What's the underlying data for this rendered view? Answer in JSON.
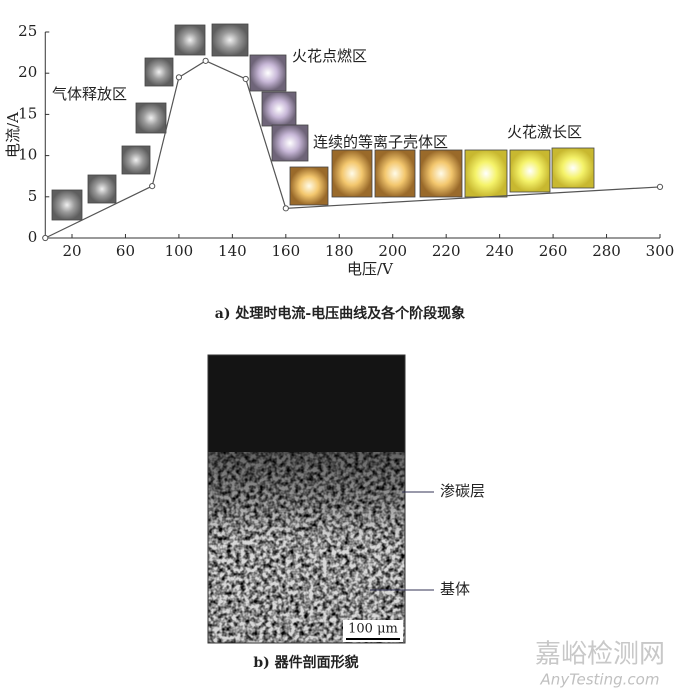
{
  "chart_data": {
    "type": "line",
    "caption": "a) 处理时电流-电压曲线及各个阶段现象",
    "xlabel": "电压/V",
    "ylabel": "电流/A",
    "x": [
      0,
      80,
      100,
      120,
      145,
      160,
      300
    ],
    "values": [
      0,
      6.3,
      19.5,
      21.5,
      19.3,
      3.6,
      6.2
    ],
    "color": "#555555",
    "xlim": [
      0,
      300
    ],
    "ylim": [
      0,
      25
    ],
    "xticks": [
      20,
      60,
      100,
      140,
      160,
      180,
      200,
      220,
      240,
      260,
      280,
      300
    ],
    "yticks": [
      0,
      5,
      10,
      15,
      20,
      25
    ],
    "annotations": [
      "气体释放区",
      "火花点燃区",
      "连续的等离子壳体区",
      "火花激长区"
    ]
  },
  "micrograph": {
    "labels": [
      "渗碳层",
      "基体"
    ],
    "scale_bar": "100 μm",
    "caption": "b) 器件剖面形貌"
  },
  "watermark": {
    "title": "嘉峪检测网",
    "url": "AnyTesting.com"
  }
}
